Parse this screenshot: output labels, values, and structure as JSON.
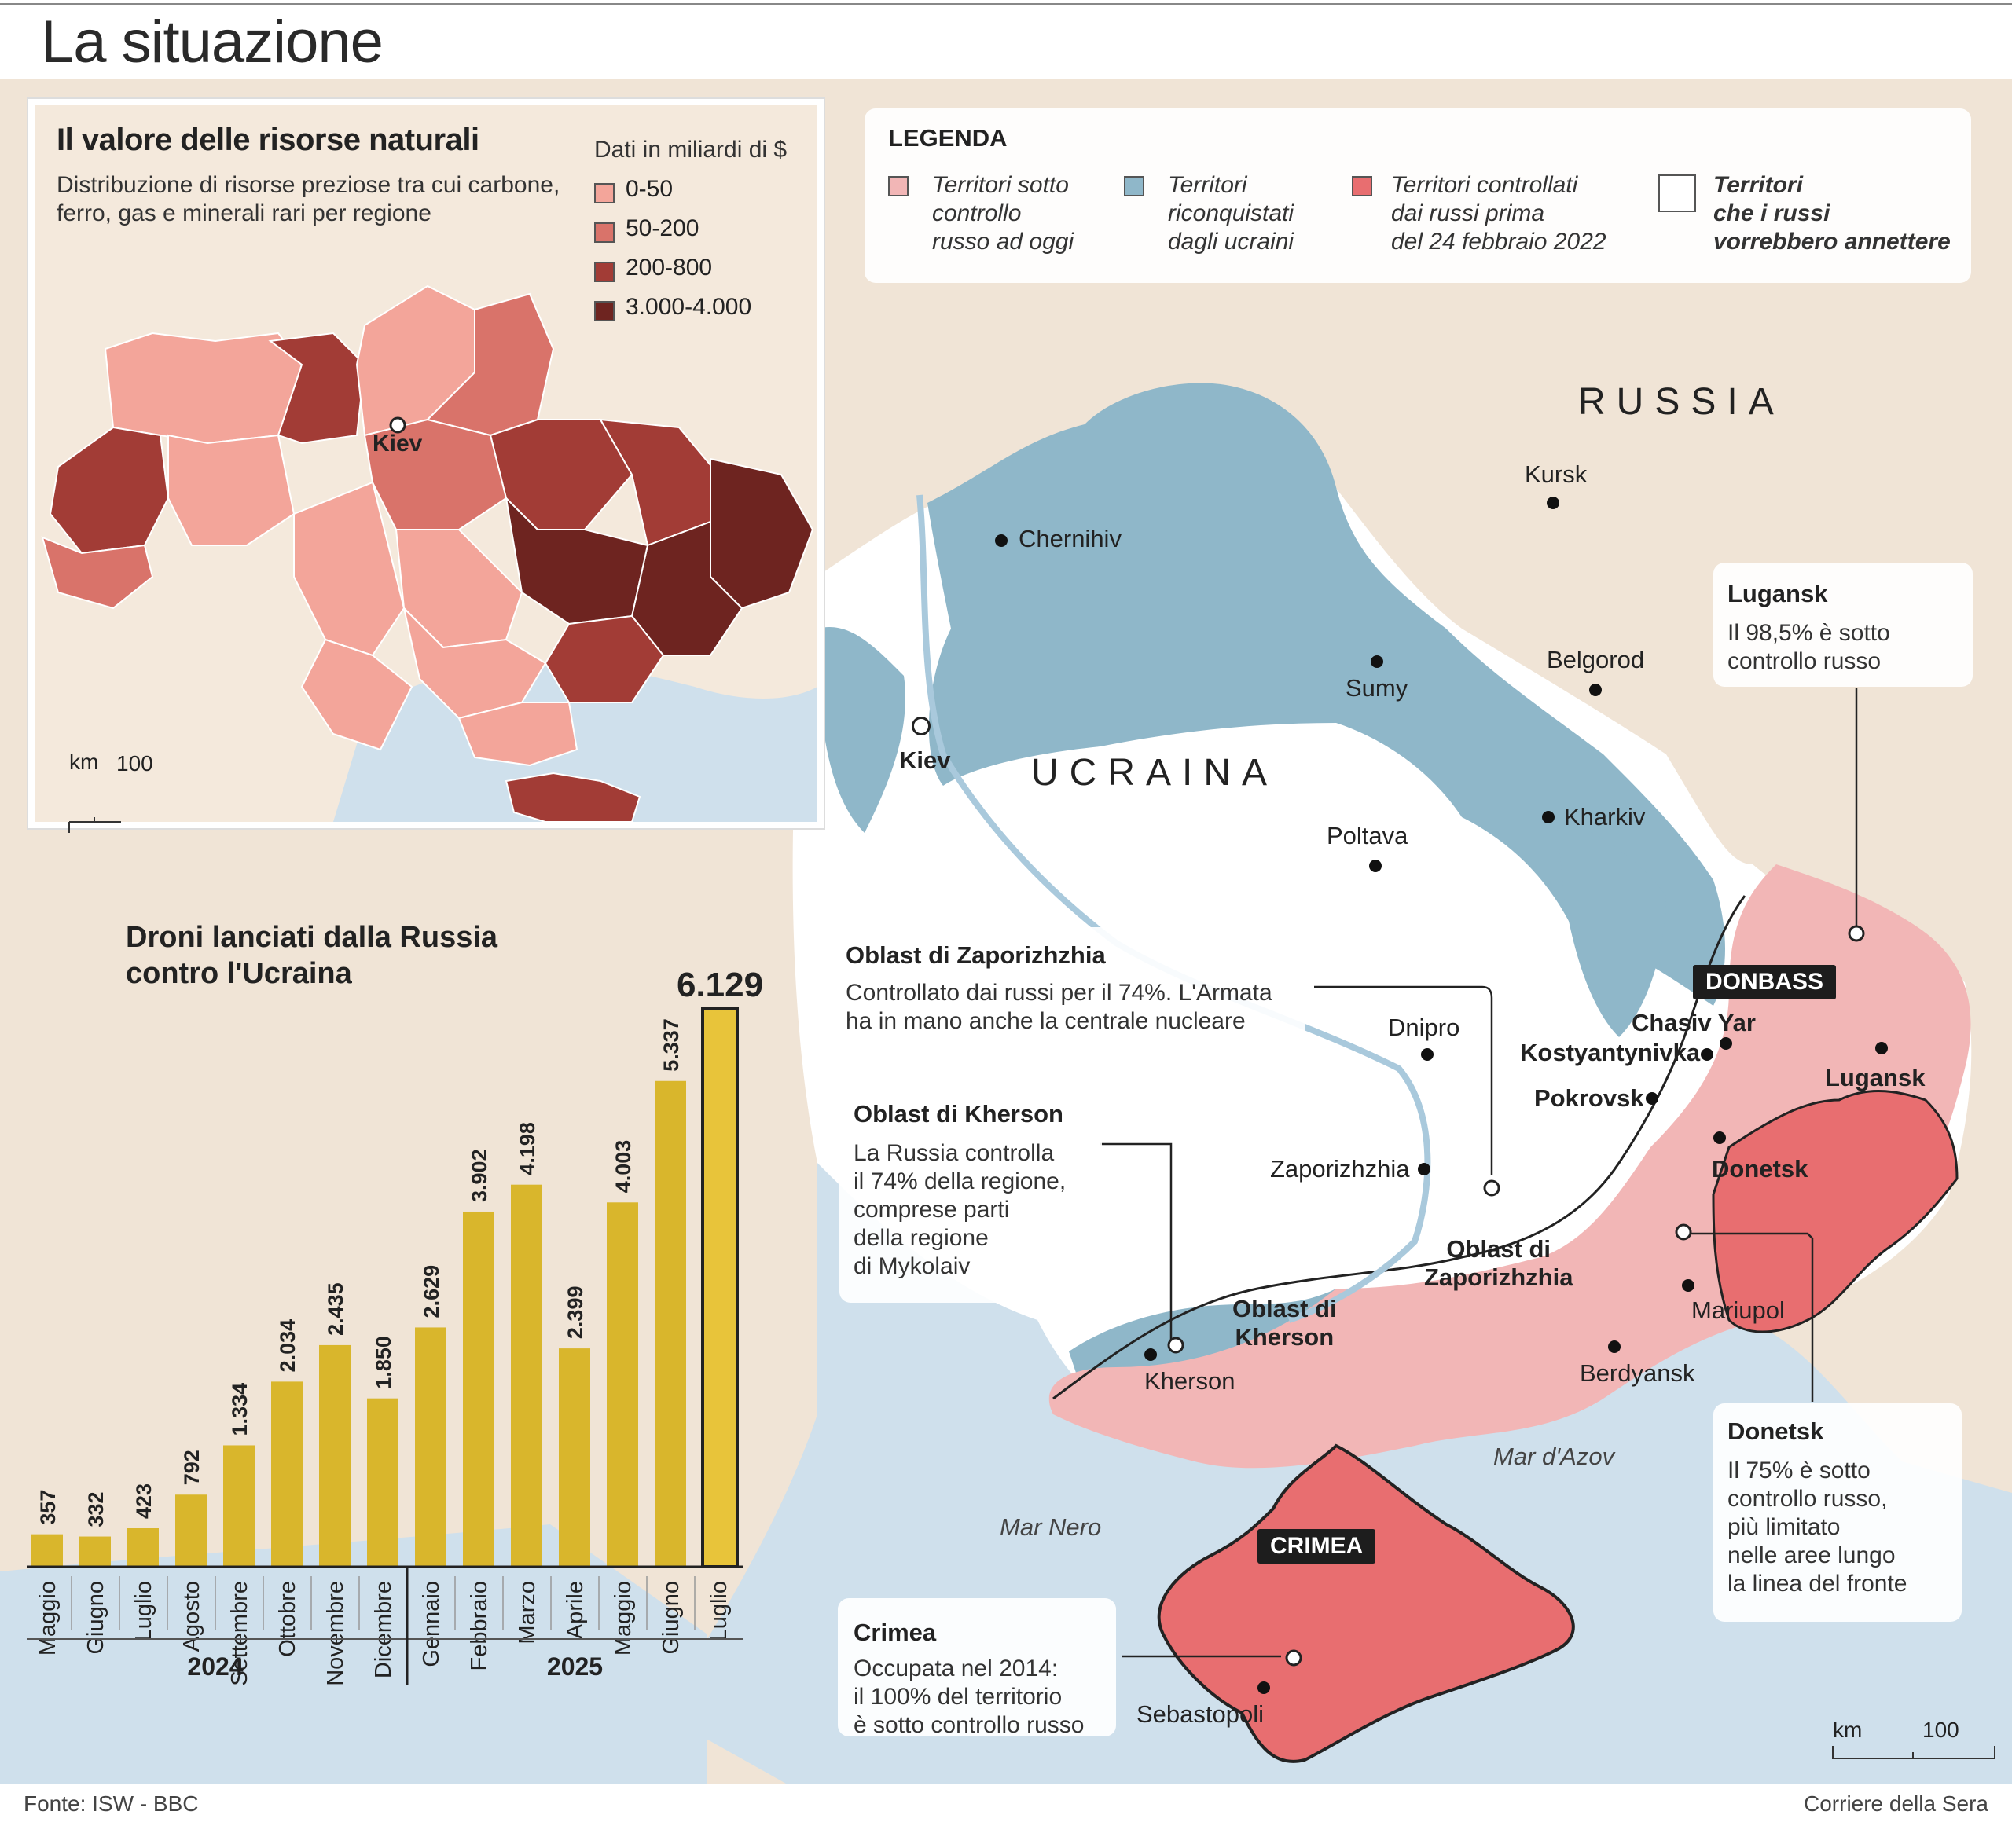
{
  "title": "La situazione",
  "footer": {
    "source": "Fonte: ISW - BBC",
    "publisher": "Corriere della Sera"
  },
  "colors": {
    "sea": "#cfe0ec",
    "land_bg": "#f0e4d6",
    "ukraine": "#ffffff",
    "occupied_now": "#f2b6b6",
    "reconquered": "#8fb7c9",
    "occupied_pre2022": "#e86e70",
    "bar": "#d9b62c",
    "bar_highlight": "#e8c43a"
  },
  "legend": {
    "title": "LEGENDA",
    "items": [
      {
        "label": "Territori sotto\ncontrollo\nrusso ad oggi",
        "color": "#f2b6b6"
      },
      {
        "label": "Territori\nriconquistati\ndagli ucraini",
        "color": "#8fb7c9"
      },
      {
        "label": "Territori controllati\ndai russi prima\ndel 24 febbraio 2022",
        "color": "#e86e70"
      },
      {
        "label": "Territori\nche i russi\nvorrebbero annettere",
        "color": "#ffffff"
      }
    ]
  },
  "country_labels": {
    "russia": "RUSSIA",
    "ukraine": "UCRAINA"
  },
  "cities": {
    "kursk": "Kursk",
    "chernihiv": "Chernihiv",
    "sumy": "Sumy",
    "belgorod": "Belgorod",
    "kiev": "Kiev",
    "kharkiv": "Kharkiv",
    "poltava": "Poltava",
    "dnipro": "Dnipro",
    "zaporizhzhia": "Zaporizhzhia",
    "kherson": "Kherson",
    "mariupol": "Mariupol",
    "berdyansk": "Berdyansk",
    "sebastopoli": "Sebastopoli",
    "chasiv_yar": "Chasiv Yar",
    "kostyantynivka": "Kostyantynivka",
    "pokrovsk": "Pokrovsk",
    "lugansk": "Lugansk",
    "donetsk": "Donetsk"
  },
  "region_labels": {
    "oblast_zap": "Oblast di\nZaporizhzhia",
    "oblast_kher": "Oblast di\nKherson",
    "donbass": "DONBASS",
    "crimea": "CRIMEA"
  },
  "seas": {
    "nero": "Mar Nero",
    "azov": "Mar d'Azov"
  },
  "callouts": {
    "lugansk": {
      "title": "Lugansk",
      "text": "Il 98,5% è sotto\ncontrollo russo"
    },
    "zaporizhzhia": {
      "title": "Oblast di Zaporizhzhia",
      "text": "Controllato dai russi per il 74%. L'Armata\nha in mano anche la centrale nucleare"
    },
    "kherson": {
      "title": "Oblast di Kherson",
      "text": "La Russia controlla\nil 74% della regione,\ncomprese parti\ndella regione\ndi Mykolaiv"
    },
    "donetsk": {
      "title": "Donetsk",
      "text": "Il 75% è sotto\ncontrollo russo,\npiù limitato\nnelle aree lungo\nla linea del fronte"
    },
    "crimea": {
      "title": "Crimea",
      "text": "Occupata nel 2014:\nil 100% del territorio\nè sotto controllo russo"
    }
  },
  "scale": {
    "unit": "km",
    "value": "100"
  },
  "inset": {
    "title": "Il valore delle risorse naturali",
    "subtitle": "Distribuzione di risorse preziose tra cui carbone,\nferro, gas e minerali rari per regione",
    "legend_title": "Dati in miliardi di $",
    "classes": [
      {
        "label": "0-50",
        "color": "#f3a59a"
      },
      {
        "label": "50-200",
        "color": "#d9736a"
      },
      {
        "label": "200-800",
        "color": "#a23c36"
      },
      {
        "label": "3.000-4.000",
        "color": "#6e2420"
      }
    ],
    "kiev": "Kiev",
    "scale": {
      "unit": "km",
      "value": "100"
    }
  },
  "chart_data": {
    "type": "bar",
    "title": "Droni lanciati dalla Russia\ncontro l'Ucraina",
    "categories": [
      "Maggio",
      "Giugno",
      "Luglio",
      "Agosto",
      "Settembre",
      "Ottobre",
      "Novembre",
      "Dicembre",
      "Gennaio",
      "Febbraio",
      "Marzo",
      "Aprile",
      "Maggio",
      "Giugno",
      "Luglio"
    ],
    "values": [
      357,
      332,
      423,
      792,
      1334,
      2034,
      2435,
      1850,
      2629,
      3902,
      4198,
      2399,
      4003,
      5337,
      6129
    ],
    "value_labels": [
      "357",
      "332",
      "423",
      "792",
      "1.334",
      "2.034",
      "2.435",
      "1.850",
      "2.629",
      "3.902",
      "4.198",
      "2.399",
      "4.003",
      "5.337",
      "6.129"
    ],
    "years": [
      {
        "label": "2024",
        "count": 8
      },
      {
        "label": "2025",
        "count": 7
      }
    ],
    "ylim": [
      0,
      6129
    ],
    "highlight_index": 14
  }
}
